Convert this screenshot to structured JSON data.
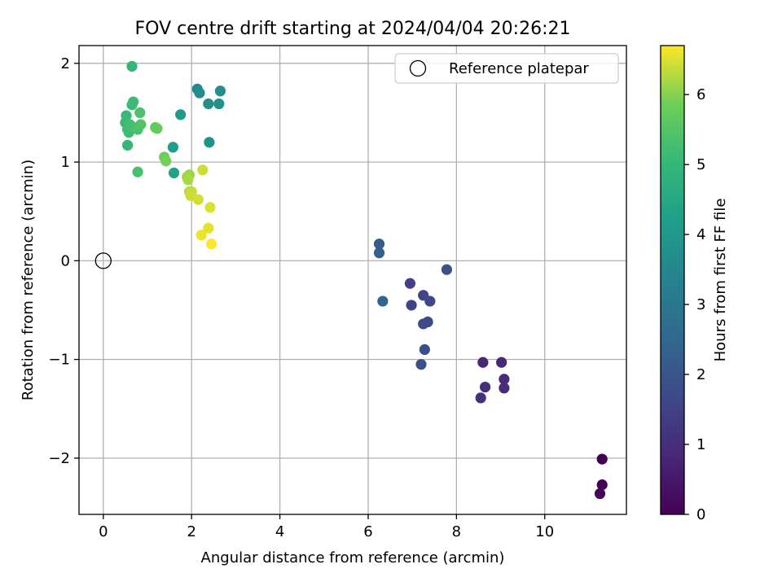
{
  "chart_data": {
    "type": "scatter",
    "title": "FOV centre drift starting at 2024/04/04 20:26:21",
    "xlabel": "Angular distance from reference (arcmin)",
    "ylabel": "Rotation from reference (arcmin)",
    "xlim": [
      -0.55,
      11.85
    ],
    "ylim": [
      -2.57,
      2.18
    ],
    "x_ticks": [
      0,
      2,
      4,
      6,
      8,
      10
    ],
    "y_ticks": [
      -2,
      -1,
      0,
      1,
      2
    ],
    "grid": true,
    "legend": {
      "placement": "top-right",
      "entries": [
        "Reference platepar"
      ]
    },
    "reference_point": {
      "x": 0,
      "y": 0,
      "label": "Reference platepar",
      "marker": "open-circle"
    },
    "colorbar": {
      "label": "Hours from first FF file",
      "colormap": "viridis",
      "range": [
        0,
        6.7
      ],
      "ticks": [
        0,
        1,
        2,
        3,
        4,
        5,
        6
      ]
    },
    "points": [
      {
        "x": 11.3,
        "y": -2.01,
        "c": 0.0
      },
      {
        "x": 11.3,
        "y": -2.27,
        "c": 0.05
      },
      {
        "x": 11.25,
        "y": -2.36,
        "c": 0.1
      },
      {
        "x": 8.6,
        "y": -1.03,
        "c": 0.8
      },
      {
        "x": 9.02,
        "y": -1.03,
        "c": 0.85
      },
      {
        "x": 9.08,
        "y": -1.2,
        "c": 0.9
      },
      {
        "x": 9.08,
        "y": -1.29,
        "c": 0.95
      },
      {
        "x": 8.65,
        "y": -1.28,
        "c": 1.0
      },
      {
        "x": 8.55,
        "y": -1.39,
        "c": 1.05
      },
      {
        "x": 6.95,
        "y": -0.23,
        "c": 1.5
      },
      {
        "x": 6.98,
        "y": -0.45,
        "c": 1.55
      },
      {
        "x": 7.25,
        "y": -0.35,
        "c": 1.6
      },
      {
        "x": 7.4,
        "y": -0.41,
        "c": 1.65
      },
      {
        "x": 7.25,
        "y": -0.64,
        "c": 1.7
      },
      {
        "x": 7.35,
        "y": -0.62,
        "c": 1.75
      },
      {
        "x": 7.28,
        "y": -0.9,
        "c": 1.8
      },
      {
        "x": 7.2,
        "y": -1.05,
        "c": 1.85
      },
      {
        "x": 7.78,
        "y": -0.09,
        "c": 1.9
      },
      {
        "x": 6.25,
        "y": 0.17,
        "c": 2.2
      },
      {
        "x": 6.25,
        "y": 0.08,
        "c": 2.3
      },
      {
        "x": 6.33,
        "y": -0.41,
        "c": 2.4
      },
      {
        "x": 2.13,
        "y": 1.74,
        "c": 3.6
      },
      {
        "x": 2.18,
        "y": 1.7,
        "c": 3.65
      },
      {
        "x": 2.65,
        "y": 1.72,
        "c": 3.7
      },
      {
        "x": 2.38,
        "y": 1.59,
        "c": 3.75
      },
      {
        "x": 2.62,
        "y": 1.59,
        "c": 3.8
      },
      {
        "x": 2.4,
        "y": 1.2,
        "c": 3.85
      },
      {
        "x": 1.75,
        "y": 1.48,
        "c": 4.1
      },
      {
        "x": 1.58,
        "y": 1.15,
        "c": 4.2
      },
      {
        "x": 1.6,
        "y": 0.89,
        "c": 4.3
      },
      {
        "x": 0.65,
        "y": 1.97,
        "c": 5.0
      },
      {
        "x": 0.52,
        "y": 1.47,
        "c": 5.05
      },
      {
        "x": 0.5,
        "y": 1.4,
        "c": 5.1
      },
      {
        "x": 0.55,
        "y": 1.33,
        "c": 5.15
      },
      {
        "x": 0.58,
        "y": 1.3,
        "c": 5.2
      },
      {
        "x": 0.65,
        "y": 1.58,
        "c": 5.1
      },
      {
        "x": 0.68,
        "y": 1.61,
        "c": 5.15
      },
      {
        "x": 0.6,
        "y": 1.38,
        "c": 5.25
      },
      {
        "x": 0.75,
        "y": 1.35,
        "c": 5.3
      },
      {
        "x": 0.78,
        "y": 1.33,
        "c": 5.35
      },
      {
        "x": 0.83,
        "y": 1.5,
        "c": 5.4
      },
      {
        "x": 0.85,
        "y": 1.38,
        "c": 5.45
      },
      {
        "x": 0.55,
        "y": 1.17,
        "c": 5.0
      },
      {
        "x": 0.78,
        "y": 0.9,
        "c": 5.3
      },
      {
        "x": 1.18,
        "y": 1.35,
        "c": 5.7
      },
      {
        "x": 1.22,
        "y": 1.34,
        "c": 5.75
      },
      {
        "x": 1.38,
        "y": 1.05,
        "c": 5.85
      },
      {
        "x": 1.42,
        "y": 1.01,
        "c": 5.9
      },
      {
        "x": 1.9,
        "y": 0.85,
        "c": 6.1
      },
      {
        "x": 1.95,
        "y": 0.87,
        "c": 6.15
      },
      {
        "x": 1.92,
        "y": 0.82,
        "c": 6.2
      },
      {
        "x": 2.25,
        "y": 0.92,
        "c": 6.4
      },
      {
        "x": 1.95,
        "y": 0.7,
        "c": 6.3
      },
      {
        "x": 2.0,
        "y": 0.7,
        "c": 6.35
      },
      {
        "x": 1.98,
        "y": 0.66,
        "c": 6.4
      },
      {
        "x": 2.15,
        "y": 0.62,
        "c": 6.45
      },
      {
        "x": 2.42,
        "y": 0.54,
        "c": 6.5
      },
      {
        "x": 2.38,
        "y": 0.33,
        "c": 6.55
      },
      {
        "x": 2.22,
        "y": 0.26,
        "c": 6.6
      },
      {
        "x": 2.45,
        "y": 0.17,
        "c": 6.7
      }
    ]
  }
}
